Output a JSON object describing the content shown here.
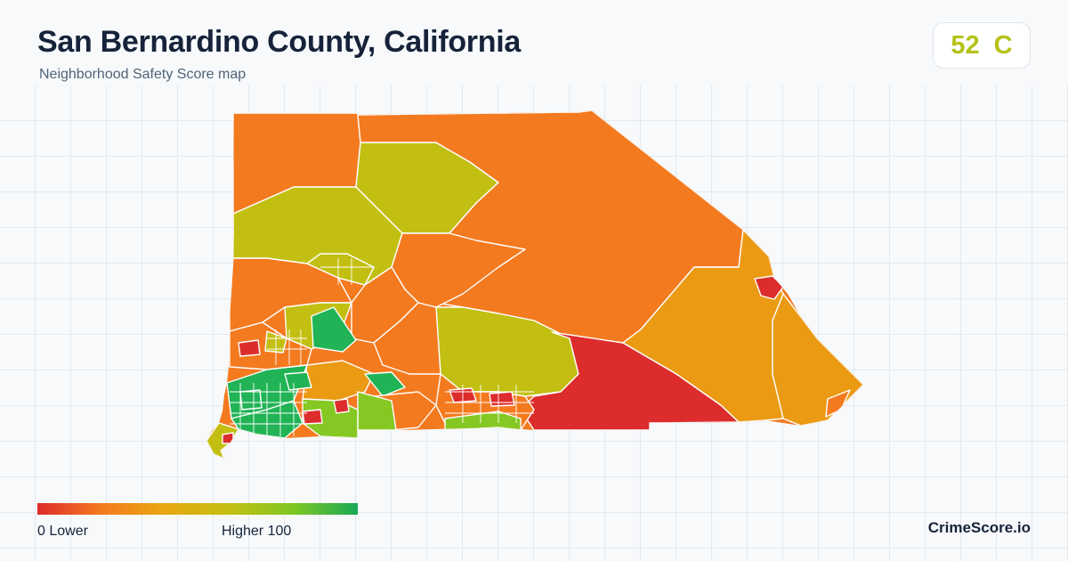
{
  "header": {
    "title": "San Bernardino County, California",
    "subtitle": "Neighborhood Safety Score map"
  },
  "score": {
    "value": "52",
    "grade": "C",
    "color": "#b5c219"
  },
  "legend": {
    "min_label": "0  Lower",
    "max_label": "Higher  100",
    "min_value": 0,
    "max_value": 100,
    "color_stops": [
      "#dd2c2c",
      "#f47a1f",
      "#e8a812",
      "#c3bf12",
      "#7fc722",
      "#18a957"
    ]
  },
  "map_colors": {
    "lower": "#dd2c2c",
    "low": "#f47a1f",
    "below_avg": "#eb9a14",
    "average": "#c3bf12",
    "above_avg": "#86c823",
    "higher": "#21b355"
  },
  "brand": {
    "name": "CrimeScore.io"
  }
}
